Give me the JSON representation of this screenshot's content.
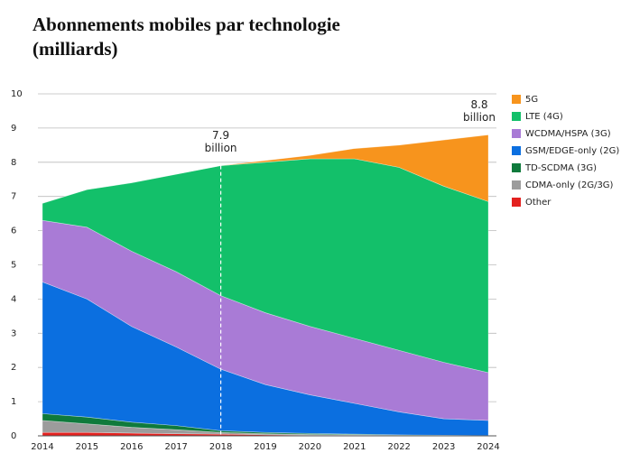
{
  "chart_data": {
    "type": "stacked_area",
    "title": "Abonnements  mobiles par technologie (milliards)",
    "categories": [
      "2014",
      "2015",
      "2016",
      "2017",
      "2018",
      "2019",
      "2020",
      "2021",
      "2022",
      "2023",
      "2024"
    ],
    "ylim": [
      0,
      10
    ],
    "yticks": [
      0,
      1,
      2,
      3,
      4,
      5,
      6,
      7,
      8,
      9,
      10
    ],
    "grid": true,
    "series": [
      {
        "name": "Other",
        "color": "#e3211f",
        "values": [
          0.1,
          0.1,
          0.08,
          0.06,
          0.05,
          0.03,
          0.02,
          0.02,
          0.01,
          0.01,
          0.01
        ]
      },
      {
        "name": "CDMA-only (2G/3G)",
        "color": "#9c9c9c",
        "values": [
          0.35,
          0.25,
          0.17,
          0.12,
          0.05,
          0.03,
          0.02,
          0.01,
          0.01,
          0,
          0
        ]
      },
      {
        "name": "TD-SCDMA (3G)",
        "color": "#0f7a3c",
        "values": [
          0.2,
          0.2,
          0.15,
          0.12,
          0.05,
          0.04,
          0.03,
          0.02,
          0.01,
          0.01,
          0
        ]
      },
      {
        "name": "GSM/EDGE-only (2G)",
        "color": "#0b6fe0",
        "values": [
          3.85,
          3.45,
          2.8,
          2.3,
          1.8,
          1.4,
          1.13,
          0.9,
          0.67,
          0.48,
          0.44
        ]
      },
      {
        "name": "WCDMA/HSPA (3G)",
        "color": "#a97bd6",
        "values": [
          1.8,
          2.1,
          2.2,
          2.2,
          2.15,
          2.1,
          2.0,
          1.9,
          1.8,
          1.65,
          1.4
        ]
      },
      {
        "name": "LTE (4G)",
        "color": "#13c06a",
        "values": [
          0.5,
          1.1,
          2.0,
          2.85,
          3.8,
          4.4,
          4.9,
          5.25,
          5.35,
          5.15,
          5.0
        ]
      },
      {
        "name": "5G",
        "color": "#f7941d",
        "values": [
          0,
          0,
          0,
          0,
          0,
          0.05,
          0.1,
          0.3,
          0.65,
          1.35,
          1.95
        ]
      }
    ],
    "annotations": [
      {
        "x": "2018",
        "text": [
          "7.9",
          "billion"
        ]
      },
      {
        "x": "2024",
        "text": [
          "8.8",
          "billion"
        ]
      }
    ]
  }
}
